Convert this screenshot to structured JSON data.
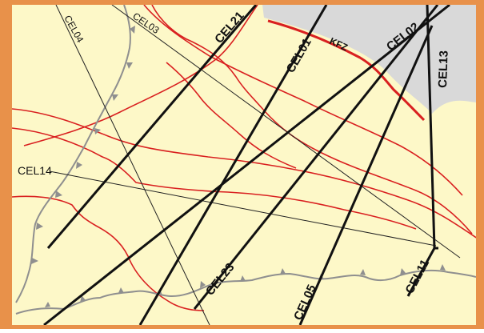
{
  "colors": {
    "background": "#fdf8c8",
    "frame": "#e8914a",
    "shaded_area": "#d9d9d9",
    "fault": "#d92020",
    "kfz_fault": "#d92020",
    "profile_heavy": "#111111",
    "profile_thin": "#222222",
    "thrust_front": "#8f8f8f"
  },
  "labels": {
    "cel01": "CEL01",
    "cel02": "CEL02",
    "cel03": "CEL03",
    "cel04": "CEL04",
    "cel05": "CEL05",
    "cel11": "CEL11",
    "cel13": "CEL13",
    "cel14": "CEL14",
    "cel21": "CEL21",
    "cel23": "CEL23",
    "kfz": "KFZ"
  }
}
